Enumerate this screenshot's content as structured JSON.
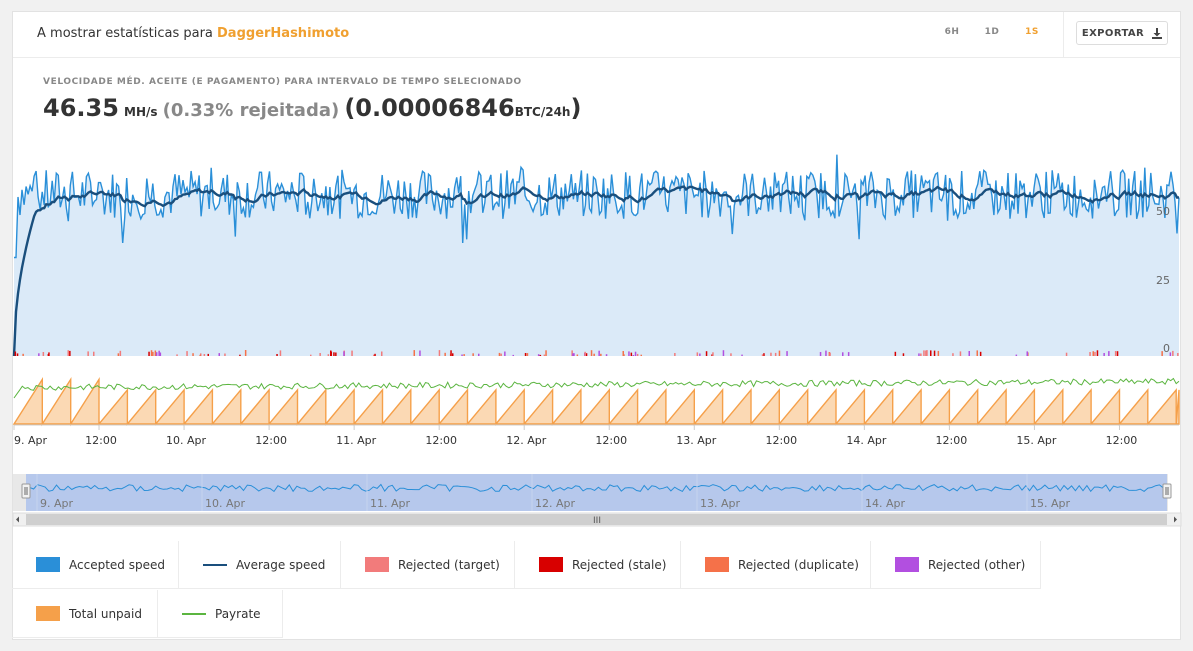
{
  "header": {
    "title_prefix": "A mostrar estatísticas para",
    "algorithm": "DaggerHashimoto",
    "ranges": [
      {
        "label": "6H",
        "active": false
      },
      {
        "label": "1D",
        "active": false
      },
      {
        "label": "1S",
        "active": true
      }
    ],
    "export_label": "EXPORTAR"
  },
  "summary": {
    "subtitle": "VELOCIDADE MÉD. ACEITE (E PAGAMENTO) PARA INTERVALO DE TEMPO SELECIONADO",
    "speed": "46.35",
    "speed_unit": "MH/s",
    "rejected": "(0.33% rejeitada)",
    "btc_open": "(0.00006846",
    "btc_unit": "BTC/24h",
    "btc_close": ")"
  },
  "chart_data": {
    "type": "area",
    "x_tick_labels": [
      "9. Apr",
      "12:00",
      "10. Apr",
      "12:00",
      "11. Apr",
      "12:00",
      "12. Apr",
      "12:00",
      "13. Apr",
      "12:00",
      "14. Apr",
      "12:00",
      "15. Apr",
      "12:00"
    ],
    "y_tick_labels": [
      "0",
      "25",
      "50"
    ],
    "ylim": [
      0,
      60
    ],
    "x_range_days": [
      0,
      6.85
    ],
    "accepted_speed_mean": 46,
    "accepted_speed_range": [
      30,
      60
    ],
    "average_speed_mean": 46,
    "average_speed_start_ramp": {
      "from": 0,
      "to": 40
    },
    "payrate_range_normalized": [
      0.2,
      0.45
    ],
    "total_unpaid_cycle_hours": 4,
    "navigator_labels": [
      "9. Apr",
      "10. Apr",
      "11. Apr",
      "12. Apr",
      "13. Apr",
      "14. Apr",
      "15. Apr"
    ],
    "series": [
      {
        "name": "Accepted speed",
        "color": "#2a8fd8"
      },
      {
        "name": "Average speed",
        "color": "#1a4f7d"
      },
      {
        "name": "Rejected (target)",
        "color": "#f27b7b"
      },
      {
        "name": "Rejected (stale)",
        "color": "#d80000"
      },
      {
        "name": "Rejected (duplicate)",
        "color": "#f57149"
      },
      {
        "name": "Rejected (other)",
        "color": "#b24fe0"
      },
      {
        "name": "Total unpaid",
        "color": "#f5a04a"
      },
      {
        "name": "Payrate",
        "color": "#5bb540"
      }
    ]
  },
  "legend": [
    {
      "label": "Accepted speed",
      "color": "#2a8fd8",
      "kind": "box"
    },
    {
      "label": "Average speed",
      "color": "#1a4f7d",
      "kind": "line"
    },
    {
      "label": "Rejected (target)",
      "color": "#f27b7b",
      "kind": "box"
    },
    {
      "label": "Rejected (stale)",
      "color": "#d80000",
      "kind": "box"
    },
    {
      "label": "Rejected (duplicate)",
      "color": "#f57149",
      "kind": "box"
    },
    {
      "label": "Rejected (other)",
      "color": "#b24fe0",
      "kind": "box"
    },
    {
      "label": "Total unpaid",
      "color": "#f5a04a",
      "kind": "box"
    },
    {
      "label": "Payrate",
      "color": "#5bb540",
      "kind": "line"
    }
  ],
  "navigator": {
    "scroll_grip": "III"
  }
}
